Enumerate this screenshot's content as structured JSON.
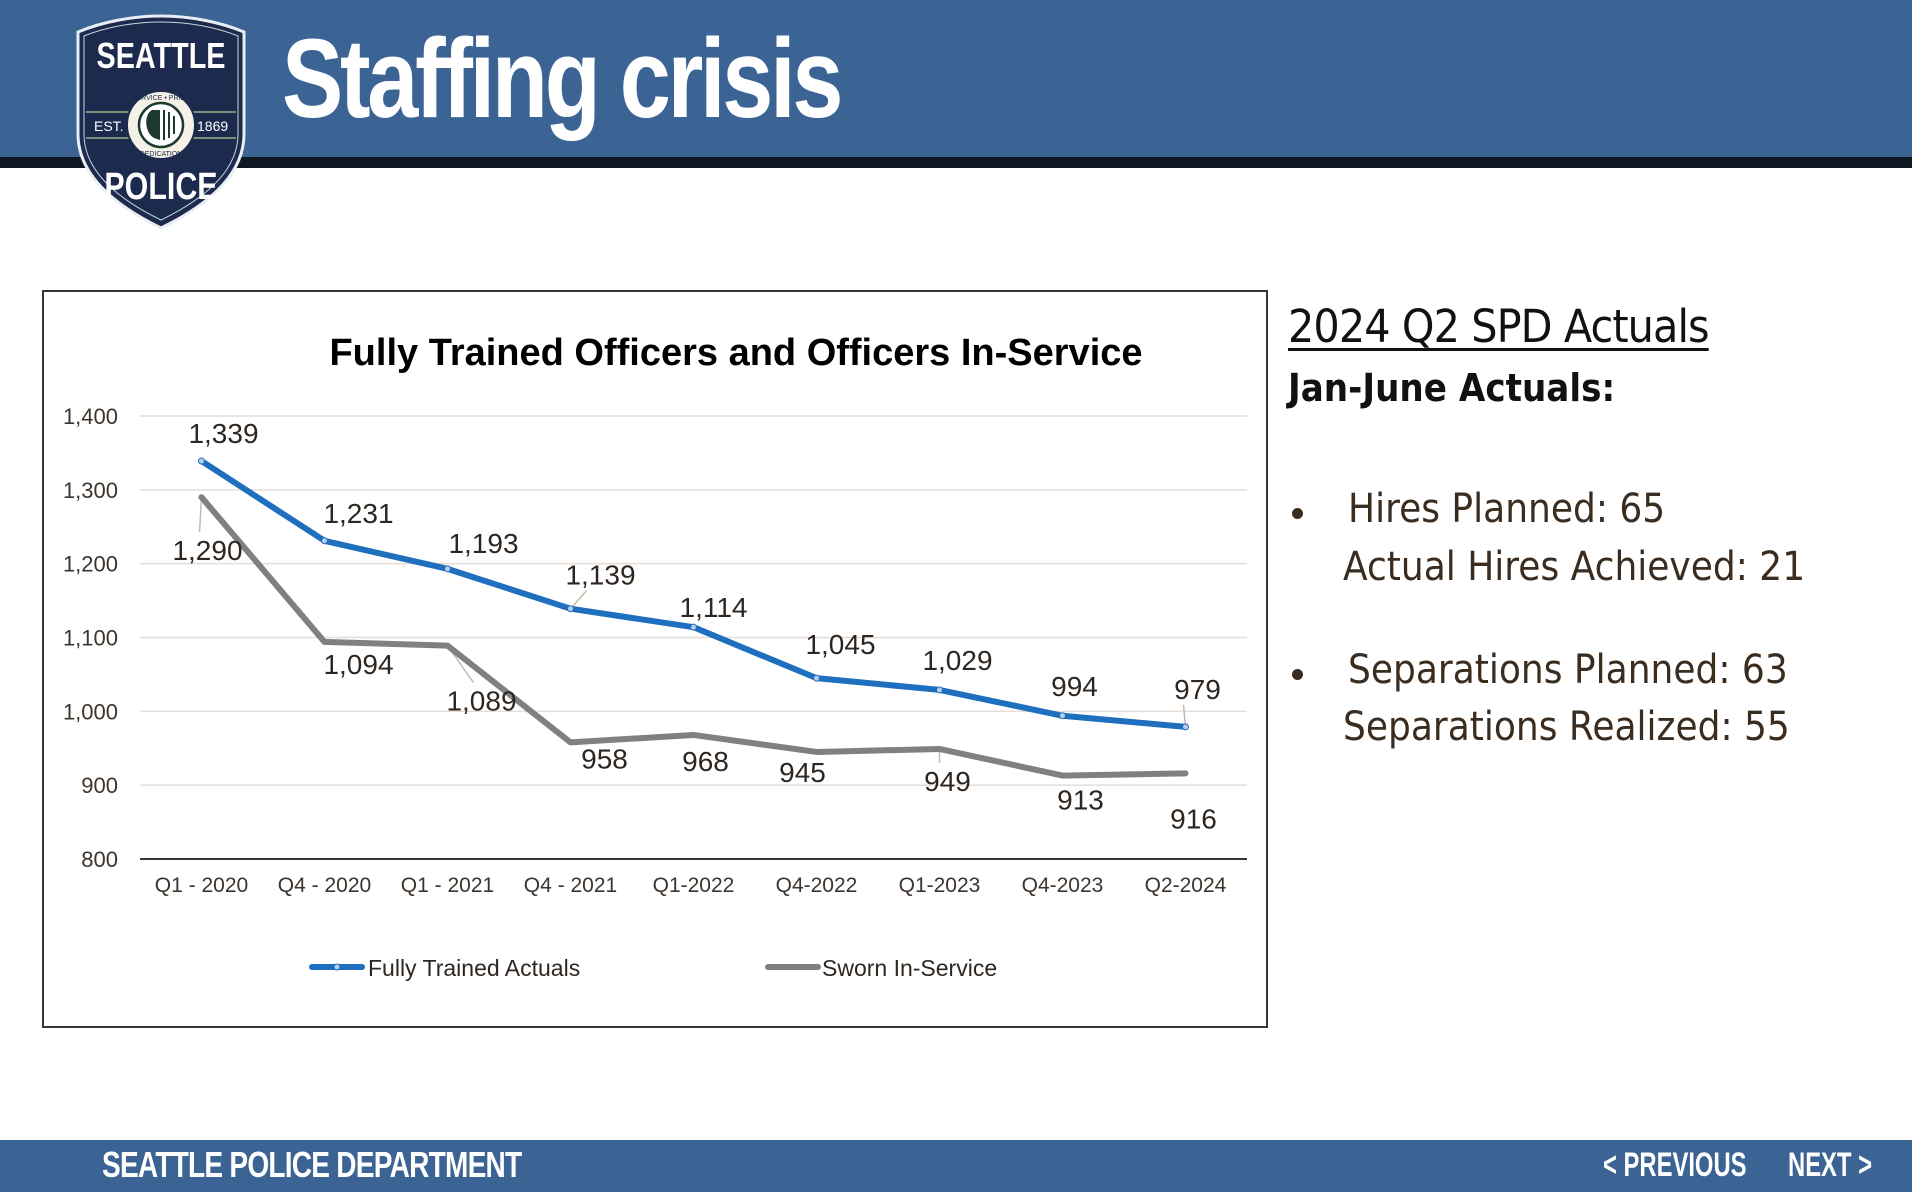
{
  "header": {
    "title": "Staffing crisis",
    "badge": {
      "top": "SEATTLE",
      "bottom": "POLICE",
      "est": "EST.",
      "year": "1869",
      "ring_top": "SERVICE • PRIDE",
      "ring_bottom": "DEDICATION"
    }
  },
  "colors": {
    "header_blue": "#3b6495",
    "series_blue": "#1f6fbf",
    "series_gray": "#808080"
  },
  "chart_data": {
    "type": "line",
    "title": "Fully Trained Officers and Officers In-Service",
    "xlabel": "",
    "ylabel": "",
    "categories": [
      "Q1 - 2020",
      "Q4 - 2020",
      "Q1 - 2021",
      "Q4 - 2021",
      "Q1-2022",
      "Q4-2022",
      "Q1-2023",
      "Q4-2023",
      "Q2-2024"
    ],
    "series": [
      {
        "name": "Fully Trained Actuals",
        "values": [
          1339,
          1231,
          1193,
          1139,
          1114,
          1045,
          1029,
          994,
          979
        ],
        "labels": [
          "1,339",
          "1,231",
          "1,193",
          "1,139",
          "1,114",
          "1,045",
          "1,029",
          "994",
          "979"
        ]
      },
      {
        "name": "Sworn In-Service",
        "values": [
          1290,
          1094,
          1089,
          958,
          968,
          945,
          949,
          913,
          916
        ],
        "labels": [
          "1,290",
          "1,094",
          "1,089",
          "958",
          "968",
          "945",
          "949",
          "913",
          "916"
        ]
      }
    ],
    "ylim": [
      800,
      1400
    ],
    "yticks": [
      800,
      900,
      1000,
      1100,
      1200,
      1300,
      1400
    ],
    "ytick_labels": [
      "800",
      "900",
      "1,000",
      "1,100",
      "1,200",
      "1,300",
      "1,400"
    ],
    "grid": true,
    "legend": "bottom"
  },
  "side": {
    "title": "2024 Q2 SPD Actuals",
    "subtitle": "Jan-June Actuals:",
    "bullets": [
      {
        "line1": "Hires Planned: 65",
        "line2": "Actual Hires Achieved: 21"
      },
      {
        "line1": "Separations Planned: 63",
        "line2": "Separations Realized: 55"
      }
    ]
  },
  "footer": {
    "title": "SEATTLE POLICE DEPARTMENT",
    "previous": "< PREVIOUS",
    "next": "NEXT >"
  }
}
